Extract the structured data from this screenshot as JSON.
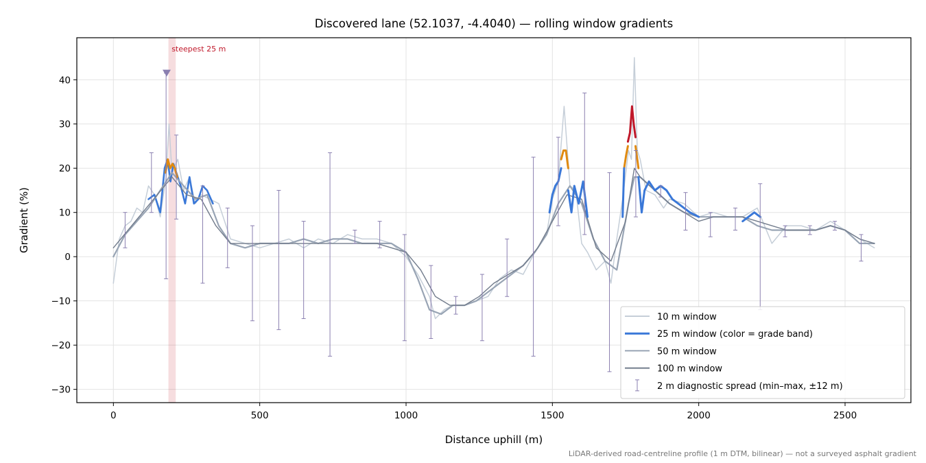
{
  "title": "Discovered lane (52.1037, -4.4040) — rolling window gradients",
  "footnote": "LiDAR-derived road-centreline profile (1 m DTM, bilinear) — not a surveyed asphalt gradient",
  "chart_data": {
    "type": "line",
    "xlabel": "Distance uphill (m)",
    "ylabel": "Gradient (%)",
    "xlim": [
      -125,
      2725
    ],
    "ylim": [
      -33,
      49.5
    ],
    "xticks": [
      0,
      500,
      1000,
      1500,
      2000,
      2500
    ],
    "yticks": [
      -30,
      -20,
      -10,
      0,
      10,
      20,
      30,
      40
    ],
    "grid": true,
    "legend_position": "lower-right",
    "grade_band_colors": {
      "below_20": "#3a78d8",
      "20_to_25": "#e08a10",
      "above_25": "#c0182a"
    },
    "steepest": {
      "label": "steepest 25 m",
      "x_start": 188,
      "x_end": 213,
      "marker_x": 182,
      "marker_y": 41.5,
      "color": "#c0182a"
    },
    "series": [
      {
        "name": "10 m window",
        "color": "#c5ced8",
        "x": [
          0,
          20,
          40,
          60,
          80,
          100,
          120,
          140,
          160,
          180,
          190,
          200,
          220,
          240,
          260,
          280,
          300,
          330,
          360,
          400,
          450,
          500,
          550,
          600,
          650,
          700,
          750,
          800,
          850,
          900,
          950,
          1000,
          1040,
          1080,
          1100,
          1130,
          1160,
          1200,
          1240,
          1280,
          1320,
          1360,
          1400,
          1440,
          1480,
          1500,
          1520,
          1540,
          1560,
          1580,
          1600,
          1620,
          1650,
          1680,
          1700,
          1720,
          1740,
          1760,
          1770,
          1780,
          1790,
          1800,
          1820,
          1850,
          1880,
          1900,
          1950,
          2000,
          2050,
          2100,
          2150,
          2200,
          2250,
          2300,
          2350,
          2400,
          2450,
          2500,
          2550,
          2600
        ],
        "y": [
          -6,
          4,
          7,
          8,
          11,
          10,
          16,
          14,
          9,
          18,
          30,
          19,
          22,
          15,
          18,
          12,
          14,
          13,
          12,
          4,
          3,
          2,
          3,
          4,
          2,
          4,
          3,
          5,
          4,
          4,
          3,
          0,
          -4,
          -9,
          -14,
          -12,
          -11,
          -11,
          -10,
          -9,
          -5,
          -3,
          -4,
          1,
          5,
          13,
          17,
          34,
          16,
          15,
          3,
          1,
          -3,
          -1,
          -6,
          4,
          13,
          24,
          22,
          45,
          24,
          22,
          15,
          14,
          11,
          13,
          12,
          9,
          10,
          9,
          9,
          11,
          3,
          7,
          7,
          6,
          8,
          6,
          4,
          2
        ]
      },
      {
        "name": "25 m window",
        "color": "#3a78d8",
        "x": [
          120,
          140,
          160,
          175,
          185,
          195,
          205,
          215,
          230,
          245,
          260,
          275,
          290,
          305,
          320,
          340
        ],
        "y": [
          13,
          14,
          10,
          20,
          22,
          17,
          21,
          19,
          16,
          12,
          18,
          12,
          13,
          16,
          15,
          12
        ]
      },
      {
        "name": "50 m window",
        "color": "#98a4b4",
        "x": [
          0,
          40,
          80,
          120,
          160,
          200,
          240,
          280,
          320,
          360,
          400,
          450,
          500,
          550,
          600,
          650,
          700,
          750,
          800,
          850,
          900,
          950,
          1000,
          1040,
          1080,
          1120,
          1160,
          1200,
          1240,
          1280,
          1320,
          1360,
          1400,
          1440,
          1480,
          1520,
          1560,
          1600,
          1640,
          1680,
          1720,
          1760,
          1780,
          1800,
          1850,
          1900,
          1950,
          2000,
          2050,
          2100,
          2150,
          2200,
          2250,
          2300,
          2350,
          2400,
          2450,
          2500,
          2550,
          2600
        ],
        "y": [
          0,
          5,
          8,
          11,
          15,
          19,
          16,
          13,
          14,
          7,
          3,
          2,
          3,
          3,
          3,
          4,
          3,
          4,
          4,
          3,
          3,
          3,
          1,
          -5,
          -12,
          -13,
          -11,
          -11,
          -10,
          -8,
          -6,
          -4,
          -2,
          1,
          5,
          12,
          16,
          12,
          4,
          -1,
          -3,
          12,
          18,
          18,
          15,
          12,
          10,
          9,
          9,
          9,
          9,
          7,
          6,
          6,
          6,
          6,
          7,
          6,
          3,
          3
        ]
      },
      {
        "name": "100 m window",
        "color": "#727c8c",
        "x": [
          0,
          50,
          100,
          150,
          200,
          250,
          300,
          350,
          400,
          450,
          500,
          550,
          600,
          650,
          700,
          750,
          800,
          850,
          900,
          950,
          1000,
          1050,
          1100,
          1150,
          1200,
          1250,
          1300,
          1350,
          1400,
          1450,
          1500,
          1550,
          1600,
          1650,
          1700,
          1750,
          1780,
          1800,
          1850,
          1900,
          1950,
          2000,
          2050,
          2100,
          2150,
          2200,
          2250,
          2300,
          2350,
          2400,
          2450,
          2500,
          2550,
          2600
        ],
        "y": [
          2,
          6,
          10,
          14,
          18,
          14,
          13,
          7,
          3,
          3,
          3,
          3,
          3,
          3,
          3,
          3,
          3,
          3,
          3,
          2,
          1,
          -3,
          -9,
          -11,
          -11,
          -9,
          -6,
          -4,
          -2,
          2,
          8,
          14,
          13,
          2,
          -1,
          8,
          20,
          18,
          15,
          12,
          10,
          8,
          9,
          9,
          9,
          8,
          7,
          6,
          6,
          6,
          7,
          6,
          4,
          3
        ]
      }
    ],
    "colored_25m_segments": [
      {
        "band": "20_to_25",
        "x": [
          178,
          186,
          194,
          202,
          210,
          218
        ],
        "y": [
          19,
          22,
          20,
          21,
          20,
          18
        ]
      },
      {
        "band": "below_20",
        "x": [
          1490,
          1500,
          1510,
          1520,
          1530
        ],
        "y": [
          10,
          14,
          16,
          17,
          20
        ]
      },
      {
        "band": "20_to_25",
        "x": [
          1530,
          1538,
          1546,
          1554
        ],
        "y": [
          22,
          24,
          24,
          20
        ]
      },
      {
        "band": "below_20",
        "x": [
          1554,
          1565,
          1575,
          1590,
          1605,
          1620
        ],
        "y": [
          15,
          10,
          16,
          12,
          17,
          9
        ]
      },
      {
        "band": "20_to_25",
        "x": [
          1745,
          1752,
          1758
        ],
        "y": [
          20,
          23,
          25
        ]
      },
      {
        "band": "above_25",
        "x": [
          1758,
          1765,
          1772,
          1778,
          1784
        ],
        "y": [
          26,
          28,
          34,
          30,
          27
        ]
      },
      {
        "band": "20_to_25",
        "x": [
          1784,
          1790,
          1794
        ],
        "y": [
          25,
          22,
          20
        ]
      },
      {
        "band": "below_20",
        "x": [
          1740,
          1745
        ],
        "y": [
          9,
          20
        ]
      },
      {
        "band": "below_20",
        "x": [
          1794,
          1805,
          1815,
          1830,
          1850,
          1870,
          1890,
          1910,
          1930,
          1950,
          1970,
          2000
        ],
        "y": [
          18,
          10,
          15,
          17,
          15,
          16,
          15,
          13,
          12,
          11,
          10,
          9
        ]
      },
      {
        "band": "below_20",
        "x": [
          2150,
          2170,
          2190,
          2210
        ],
        "y": [
          8,
          9,
          10,
          9
        ]
      }
    ],
    "error_bars": {
      "name": "2 m diagnostic spread (min–max, ±12 m)",
      "color": "#8a7fb0",
      "points": [
        {
          "x": 40,
          "lo": 2,
          "hi": 10
        },
        {
          "x": 130,
          "lo": 10,
          "hi": 23.5
        },
        {
          "x": 180,
          "lo": -5,
          "hi": 41.5
        },
        {
          "x": 215,
          "lo": 8.5,
          "hi": 27.5
        },
        {
          "x": 305,
          "lo": -6,
          "hi": 16
        },
        {
          "x": 390,
          "lo": -2.5,
          "hi": 11
        },
        {
          "x": 475,
          "lo": -14.5,
          "hi": 7
        },
        {
          "x": 565,
          "lo": -16.5,
          "hi": 15
        },
        {
          "x": 650,
          "lo": -14,
          "hi": 8
        },
        {
          "x": 740,
          "lo": -22.5,
          "hi": 23.5
        },
        {
          "x": 825,
          "lo": 3,
          "hi": 6
        },
        {
          "x": 910,
          "lo": 2,
          "hi": 8
        },
        {
          "x": 995,
          "lo": -19,
          "hi": 5
        },
        {
          "x": 1085,
          "lo": -18.5,
          "hi": -2
        },
        {
          "x": 1170,
          "lo": -13,
          "hi": -9
        },
        {
          "x": 1260,
          "lo": -19,
          "hi": -4
        },
        {
          "x": 1345,
          "lo": -9,
          "hi": 4
        },
        {
          "x": 1435,
          "lo": -22.5,
          "hi": 22.5
        },
        {
          "x": 1520,
          "lo": 7,
          "hi": 27
        },
        {
          "x": 1610,
          "lo": 5,
          "hi": 37
        },
        {
          "x": 1695,
          "lo": -26,
          "hi": 19
        },
        {
          "x": 1785,
          "lo": 9,
          "hi": 24
        },
        {
          "x": 1870,
          "lo": 13.5,
          "hi": 16
        },
        {
          "x": 1955,
          "lo": 6,
          "hi": 14.5
        },
        {
          "x": 2040,
          "lo": 4.5,
          "hi": 10
        },
        {
          "x": 2125,
          "lo": 6,
          "hi": 11
        },
        {
          "x": 2210,
          "lo": -12,
          "hi": 16.5
        },
        {
          "x": 2295,
          "lo": 4.5,
          "hi": 7
        },
        {
          "x": 2380,
          "lo": 5,
          "hi": 7
        },
        {
          "x": 2465,
          "lo": 6,
          "hi": 8
        },
        {
          "x": 2555,
          "lo": -1,
          "hi": 5
        }
      ]
    },
    "legend": [
      {
        "label": "10 m window",
        "style": "line",
        "color": "#c5ced8",
        "width": 2
      },
      {
        "label": "25 m window (color = grade band)",
        "style": "line",
        "color": "#3a78d8",
        "width": 3
      },
      {
        "label": "50 m window",
        "style": "line",
        "color": "#98a4b4",
        "width": 2
      },
      {
        "label": "100 m window",
        "style": "line",
        "color": "#727c8c",
        "width": 2
      },
      {
        "label": "2 m diagnostic spread (min–max, ±12 m)",
        "style": "errorbar",
        "color": "#8a7fb0",
        "width": 1
      }
    ]
  }
}
